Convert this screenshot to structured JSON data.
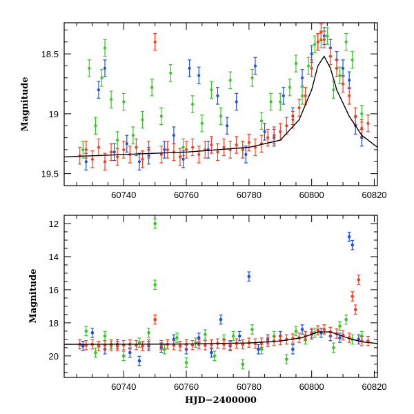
{
  "chart_data": [
    {
      "type": "scatter",
      "panel": "top",
      "title": "",
      "xlabel": "",
      "ylabel": "Magnitude",
      "xlim": [
        60721,
        60821
      ],
      "ylim": [
        19.6,
        18.24
      ],
      "y_inverted": true,
      "xticks": [
        60740,
        60760,
        60780,
        60800,
        60820
      ],
      "yticks": [
        18.5,
        19,
        19.5
      ],
      "minor_x_step": 5,
      "minor_y_step": 0.1,
      "series": [
        {
          "color": "#34c924",
          "points": [
            [
              60727,
              19.3
            ],
            [
              60729,
              18.62
            ],
            [
              60731,
              19.1
            ],
            [
              60733,
              18.7
            ],
            [
              60734,
              18.45
            ],
            [
              60736,
              18.88
            ],
            [
              60738,
              19.22
            ],
            [
              60740,
              18.9
            ],
            [
              60743,
              19.18
            ],
            [
              60746,
              19.05
            ],
            [
              60749,
              18.78
            ],
            [
              60752,
              19.02
            ],
            [
              60755,
              18.66
            ],
            [
              60759,
              19.28
            ],
            [
              60762,
              18.92
            ],
            [
              60765,
              19.08
            ],
            [
              60768,
              18.8
            ],
            [
              60771,
              19.02
            ],
            [
              60774,
              18.72
            ],
            [
              60778,
              19.3
            ],
            [
              60781,
              18.7
            ],
            [
              60784,
              19.06
            ],
            [
              60787,
              18.9
            ],
            [
              60790,
              18.9
            ],
            [
              60793,
              18.78
            ],
            [
              60795,
              18.58
            ],
            [
              60797,
              18.85
            ],
            [
              60799,
              18.6
            ],
            [
              60801,
              18.42
            ],
            [
              60803,
              18.38
            ],
            [
              60805,
              18.35
            ],
            [
              60807,
              18.8
            ],
            [
              60809,
              18.68
            ],
            [
              60811,
              18.4
            ],
            [
              60813,
              18.55
            ],
            [
              60816,
              19.0
            ]
          ]
        },
        {
          "color": "#1f4fe0",
          "points": [
            [
              60728,
              19.4
            ],
            [
              60732,
              18.8
            ],
            [
              60734,
              18.62
            ],
            [
              60737,
              19.32
            ],
            [
              60741,
              19.25
            ],
            [
              60745,
              19.4
            ],
            [
              60748,
              19.35
            ],
            [
              60753,
              19.3
            ],
            [
              60756,
              19.18
            ],
            [
              60759,
              19.38
            ],
            [
              60761,
              18.62
            ],
            [
              60764,
              18.68
            ],
            [
              60767,
              19.3
            ],
            [
              60770,
              18.85
            ],
            [
              60773,
              19.1
            ],
            [
              60776,
              18.9
            ],
            [
              60779,
              19.34
            ],
            [
              60782,
              18.6
            ],
            [
              60785,
              19.15
            ],
            [
              60788,
              19.2
            ],
            [
              60791,
              18.85
            ],
            [
              60794,
              19.02
            ],
            [
              60797,
              18.7
            ],
            [
              60800,
              18.5
            ],
            [
              60802,
              18.4
            ],
            [
              60804,
              18.35
            ],
            [
              60806,
              18.45
            ],
            [
              60808,
              18.55
            ],
            [
              60810,
              18.62
            ],
            [
              60812,
              18.72
            ],
            [
              60814,
              19.1
            ],
            [
              60816,
              19.2
            ]
          ]
        },
        {
          "color": "#ff3b1f",
          "points": [
            [
              60726,
              19.35
            ],
            [
              60728,
              19.3
            ],
            [
              60730,
              19.38
            ],
            [
              60732,
              19.28
            ],
            [
              60734,
              19.4
            ],
            [
              60736,
              19.32
            ],
            [
              60738,
              19.36
            ],
            [
              60740,
              19.3
            ],
            [
              60742,
              19.34
            ],
            [
              60744,
              19.28
            ],
            [
              60746,
              19.38
            ],
            [
              60748,
              19.3
            ],
            [
              60750,
              18.4
            ],
            [
              60752,
              19.34
            ],
            [
              60754,
              19.3
            ],
            [
              60756,
              19.32
            ],
            [
              60758,
              19.36
            ],
            [
              60760,
              19.3
            ],
            [
              60762,
              19.28
            ],
            [
              60764,
              19.34
            ],
            [
              60766,
              19.3
            ],
            [
              60768,
              19.26
            ],
            [
              60770,
              19.32
            ],
            [
              60772,
              19.28
            ],
            [
              60774,
              19.3
            ],
            [
              60776,
              19.26
            ],
            [
              60778,
              19.3
            ],
            [
              60780,
              19.24
            ],
            [
              60782,
              19.28
            ],
            [
              60784,
              19.25
            ],
            [
              60786,
              19.2
            ],
            [
              60788,
              19.18
            ],
            [
              60790,
              19.15
            ],
            [
              60792,
              19.1
            ],
            [
              60794,
              19.05
            ],
            [
              60796,
              18.95
            ],
            [
              60798,
              18.85
            ],
            [
              60800,
              18.62
            ],
            [
              60802,
              18.4
            ],
            [
              60803,
              18.32
            ],
            [
              60804,
              18.38
            ],
            [
              60806,
              18.52
            ],
            [
              60808,
              18.62
            ],
            [
              60810,
              18.75
            ],
            [
              60812,
              18.85
            ],
            [
              60814,
              19.02
            ],
            [
              60816,
              19.12
            ],
            [
              60818,
              19.08
            ]
          ]
        }
      ],
      "model_curve": {
        "color": "#000000",
        "points": [
          [
            60721,
            19.36
          ],
          [
            60740,
            19.34
          ],
          [
            60760,
            19.32
          ],
          [
            60780,
            19.28
          ],
          [
            60790,
            19.22
          ],
          [
            60796,
            19.05
          ],
          [
            60800,
            18.8
          ],
          [
            60802,
            18.6
          ],
          [
            60804,
            18.52
          ],
          [
            60806,
            18.62
          ],
          [
            60808,
            18.8
          ],
          [
            60812,
            19.02
          ],
          [
            60816,
            19.18
          ],
          [
            60821,
            19.28
          ]
        ]
      }
    },
    {
      "type": "scatter",
      "panel": "bottom",
      "title": "",
      "xlabel": "HJD−2400000",
      "ylabel": "Magnitude",
      "xlim": [
        60721,
        60821
      ],
      "ylim": [
        21.3,
        11.5
      ],
      "y_inverted": true,
      "xticks": [
        60740,
        60760,
        60780,
        60800,
        60820
      ],
      "yticks": [
        12,
        14,
        16,
        18,
        20
      ],
      "minor_x_step": 5,
      "minor_y_step": 0.5,
      "series": [
        {
          "color": "#34c924",
          "points": [
            [
              60728,
              18.5
            ],
            [
              60731,
              19.8
            ],
            [
              60734,
              18.8
            ],
            [
              60736,
              19.4
            ],
            [
              60740,
              20.0
            ],
            [
              60745,
              19.2
            ],
            [
              60748,
              18.6
            ],
            [
              60750,
              12.0
            ],
            [
              60750,
              15.7
            ],
            [
              60753,
              19.6
            ],
            [
              60757,
              18.9
            ],
            [
              60760,
              20.4
            ],
            [
              60763,
              19.2
            ],
            [
              60766,
              18.7
            ],
            [
              60769,
              20.0
            ],
            [
              60772,
              19.0
            ],
            [
              60775,
              18.8
            ],
            [
              60778,
              20.5
            ],
            [
              60781,
              18.4
            ],
            [
              60784,
              19.6
            ],
            [
              60788,
              18.8
            ],
            [
              60792,
              20.2
            ],
            [
              60795,
              18.5
            ],
            [
              60798,
              19.0
            ],
            [
              60801,
              18.6
            ],
            [
              60804,
              18.4
            ],
            [
              60807,
              19.5
            ],
            [
              60809,
              18.2
            ],
            [
              60811,
              17.8
            ],
            [
              60813,
              19.0
            ],
            [
              60816,
              18.8
            ]
          ]
        },
        {
          "color": "#1f4fe0",
          "points": [
            [
              60727,
              19.4
            ],
            [
              60730,
              18.6
            ],
            [
              60734,
              19.6
            ],
            [
              60738,
              19.3
            ],
            [
              60742,
              19.8
            ],
            [
              60745,
              20.3
            ],
            [
              60748,
              19.4
            ],
            [
              60752,
              19.5
            ],
            [
              60756,
              19.0
            ],
            [
              60760,
              19.6
            ],
            [
              60764,
              18.9
            ],
            [
              60768,
              19.8
            ],
            [
              60771,
              17.8
            ],
            [
              60774,
              19.4
            ],
            [
              60777,
              18.8
            ],
            [
              60780,
              15.2
            ],
            [
              60783,
              19.6
            ],
            [
              60786,
              19.0
            ],
            [
              60790,
              18.8
            ],
            [
              60794,
              19.6
            ],
            [
              60797,
              18.4
            ],
            [
              60800,
              18.7
            ],
            [
              60803,
              18.6
            ],
            [
              60806,
              18.8
            ],
            [
              60809,
              18.9
            ],
            [
              60812,
              12.8
            ],
            [
              60813,
              13.3
            ],
            [
              60815,
              19.0
            ]
          ]
        },
        {
          "color": "#ff3b1f",
          "points": [
            [
              60726,
              19.3
            ],
            [
              60728,
              19.35
            ],
            [
              60730,
              19.3
            ],
            [
              60732,
              19.4
            ],
            [
              60734,
              19.35
            ],
            [
              60736,
              19.3
            ],
            [
              60738,
              19.4
            ],
            [
              60740,
              19.35
            ],
            [
              60742,
              19.3
            ],
            [
              60744,
              19.35
            ],
            [
              60746,
              19.4
            ],
            [
              60748,
              19.3
            ],
            [
              60750,
              17.8
            ],
            [
              60752,
              19.35
            ],
            [
              60754,
              19.3
            ],
            [
              60756,
              19.35
            ],
            [
              60758,
              19.4
            ],
            [
              60760,
              19.3
            ],
            [
              60762,
              19.35
            ],
            [
              60764,
              19.3
            ],
            [
              60766,
              19.35
            ],
            [
              60768,
              19.3
            ],
            [
              60770,
              19.25
            ],
            [
              60772,
              19.3
            ],
            [
              60774,
              19.35
            ],
            [
              60776,
              19.25
            ],
            [
              60778,
              19.3
            ],
            [
              60780,
              19.2
            ],
            [
              60782,
              19.25
            ],
            [
              60784,
              19.2
            ],
            [
              60786,
              19.15
            ],
            [
              60788,
              19.1
            ],
            [
              60790,
              19.05
            ],
            [
              60792,
              19.0
            ],
            [
              60794,
              18.95
            ],
            [
              60796,
              18.9
            ],
            [
              60798,
              18.8
            ],
            [
              60800,
              18.6
            ],
            [
              60802,
              18.45
            ],
            [
              60804,
              18.4
            ],
            [
              60806,
              18.55
            ],
            [
              60808,
              18.65
            ],
            [
              60810,
              18.75
            ],
            [
              60812,
              18.9
            ],
            [
              60813,
              16.4
            ],
            [
              60814,
              17.2
            ],
            [
              60815,
              15.4
            ],
            [
              60816,
              19.1
            ],
            [
              60818,
              19.1
            ]
          ]
        }
      ],
      "model_curve": {
        "color": "#000000",
        "points": [
          [
            60721,
            19.3
          ],
          [
            60760,
            19.28
          ],
          [
            60780,
            19.22
          ],
          [
            60790,
            19.1
          ],
          [
            60797,
            18.9
          ],
          [
            60802,
            18.55
          ],
          [
            60806,
            18.55
          ],
          [
            60812,
            18.95
          ],
          [
            60816,
            19.15
          ],
          [
            60821,
            19.25
          ]
        ]
      }
    }
  ]
}
